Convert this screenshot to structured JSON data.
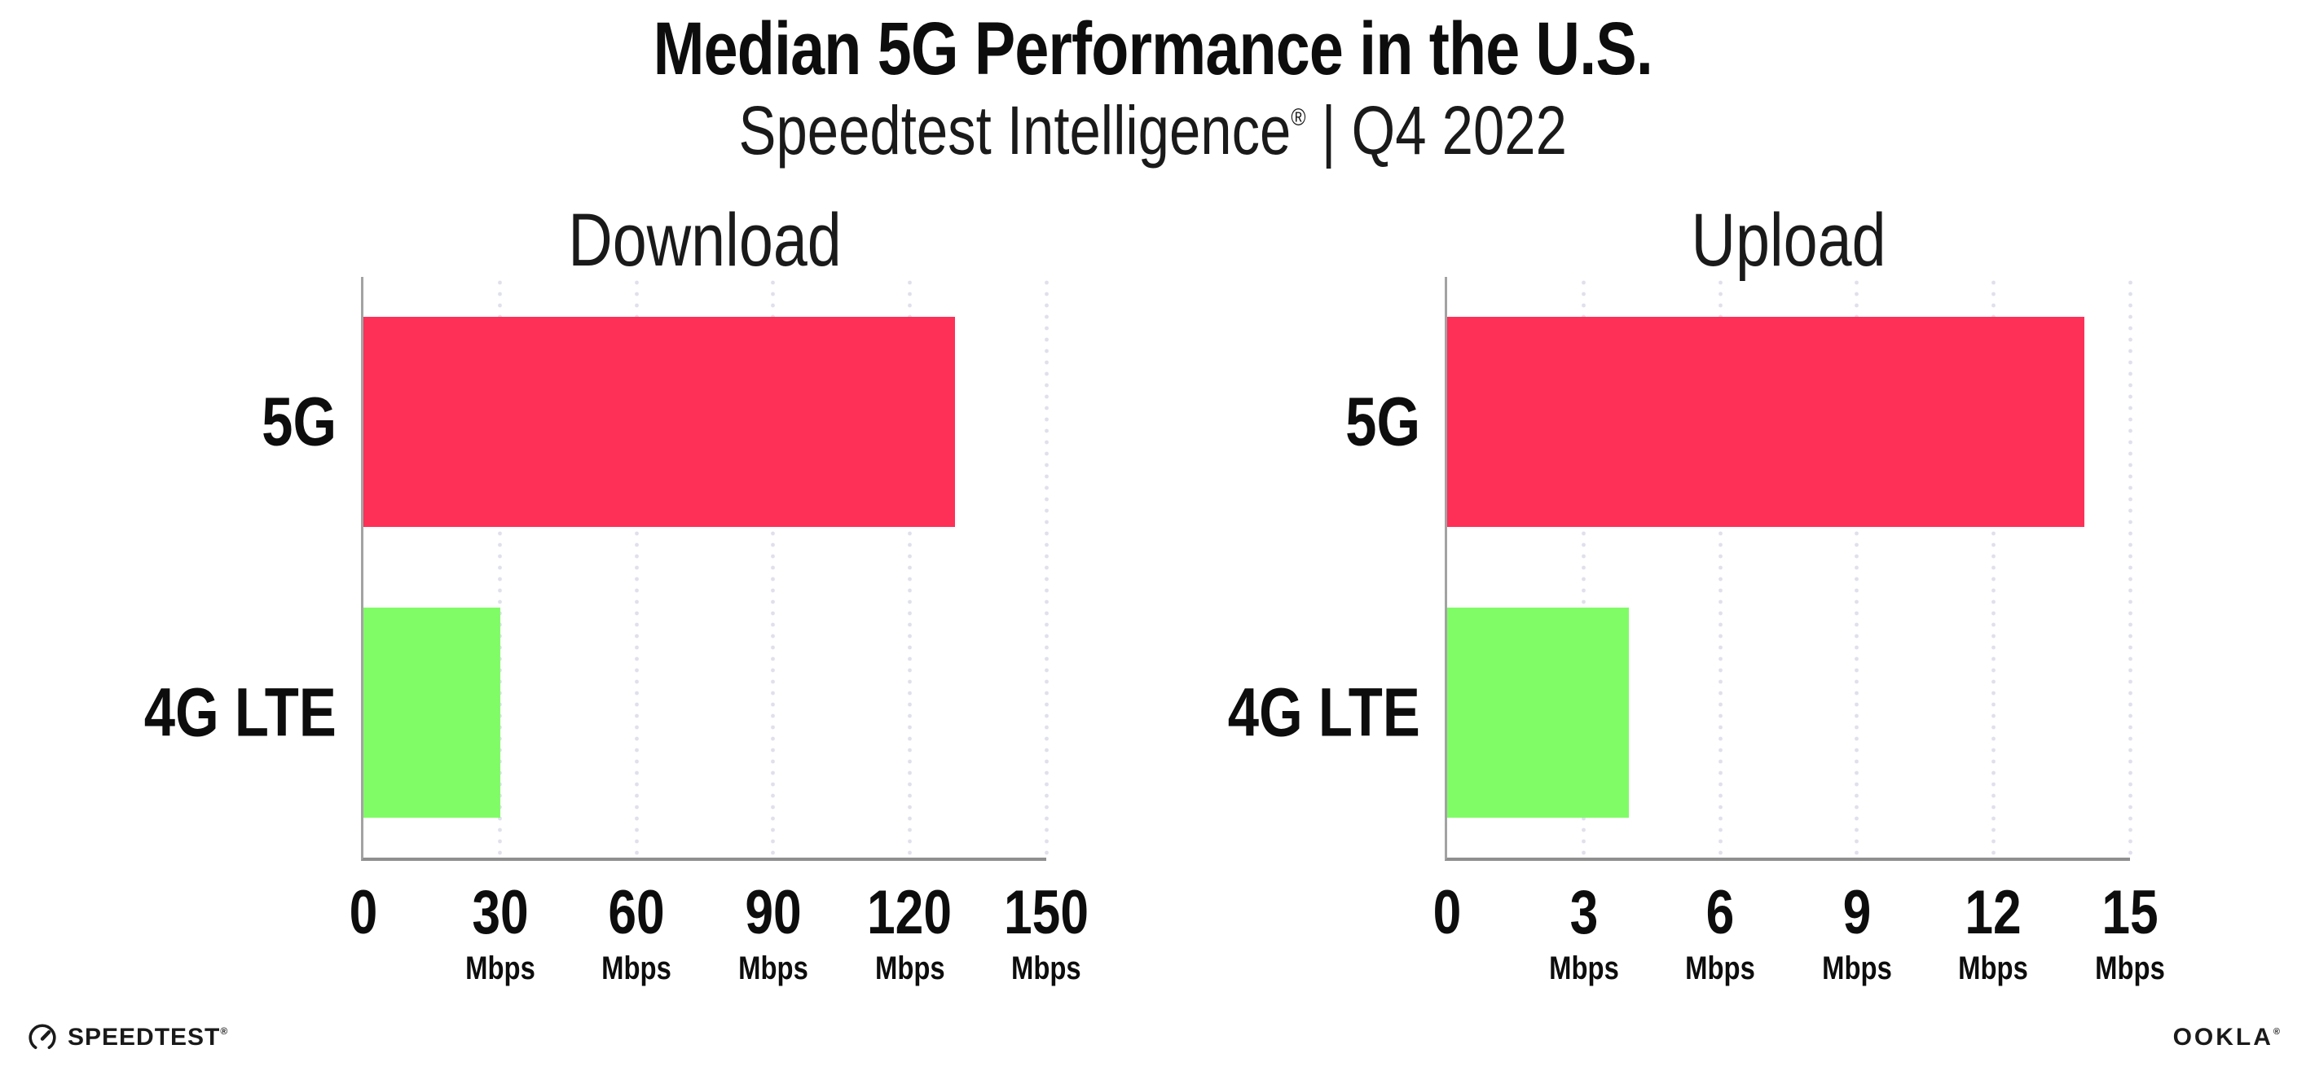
{
  "header": {
    "title": "Median 5G Performance in the U.S.",
    "subtitle_brand": "Speedtest Intelligence",
    "subtitle_reg": "®",
    "subtitle_rest": " | Q4 2022"
  },
  "chart_data": [
    {
      "type": "bar",
      "orientation": "horizontal",
      "title": "Download",
      "categories": [
        "5G",
        "4G LTE"
      ],
      "values": [
        130,
        30
      ],
      "unit": "Mbps",
      "xlim": [
        0,
        150
      ],
      "xticks": [
        0,
        30,
        60,
        90,
        120,
        150
      ],
      "bar_colors": [
        "#FF3057",
        "#80FC66"
      ],
      "grid": "dotted-vertical-at-ticks",
      "legend": "none"
    },
    {
      "type": "bar",
      "orientation": "horizontal",
      "title": "Upload",
      "categories": [
        "5G",
        "4G LTE"
      ],
      "values": [
        14,
        4
      ],
      "unit": "Mbps",
      "xlim": [
        0,
        15
      ],
      "xticks": [
        0,
        3,
        6,
        9,
        12,
        15
      ],
      "bar_colors": [
        "#FF3057",
        "#80FC66"
      ],
      "grid": "dotted-vertical-at-ticks",
      "legend": "none"
    }
  ],
  "footer": {
    "speedtest_label": "SPEEDTEST",
    "speedtest_mark": "®",
    "ookla_label": "OOKLA",
    "ookla_mark": "®"
  },
  "colors": {
    "bar_5g": "#FF3057",
    "bar_4g_lte": "#80FC66",
    "axis": "#9b9b9b",
    "gridline": "#e0e0ec",
    "text": "#141414",
    "background": "#ffffff"
  }
}
